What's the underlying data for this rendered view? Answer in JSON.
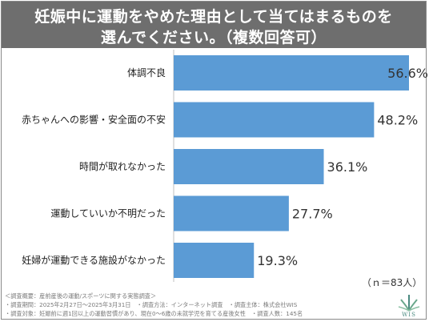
{
  "title": {
    "line1": "妊娠中に運動をやめた理由として当てはまるものを",
    "line2": "選んでください。（複数回答可）"
  },
  "chart_data": {
    "type": "bar",
    "orientation": "horizontal",
    "categories": [
      "体調不良",
      "赤ちゃんへの影響・安全面の不安",
      "時間が取れなかった",
      "運動していいか不明だった",
      "妊婦が運動できる施設がなかった"
    ],
    "values": [
      56.6,
      48.2,
      36.1,
      27.7,
      19.3
    ],
    "value_labels": [
      "56.6%",
      "48.2%",
      "36.1%",
      "27.7%",
      "19.3%"
    ],
    "xlim": [
      0,
      56.6
    ],
    "bar_color": "#5b9bd5",
    "grid": false,
    "legend": "none"
  },
  "n_label": "（ｎ＝83人）",
  "footer": {
    "line1": "＜調査概要：産前産後の運動/スポーツに関する実態調査＞",
    "line2": "・調査期間：2025年2月27日～2025年3月31日　・調査方法：インターネット調査　・調査主体：株式会社WIS",
    "line3": "・調査対象：妊娠前に週1回以上の運動習慣があり、現在0～6歳の未就学児を育てる産後女性　・調査人数：145名"
  },
  "logo": {
    "text": "WIS",
    "color": "#4a8a80"
  }
}
